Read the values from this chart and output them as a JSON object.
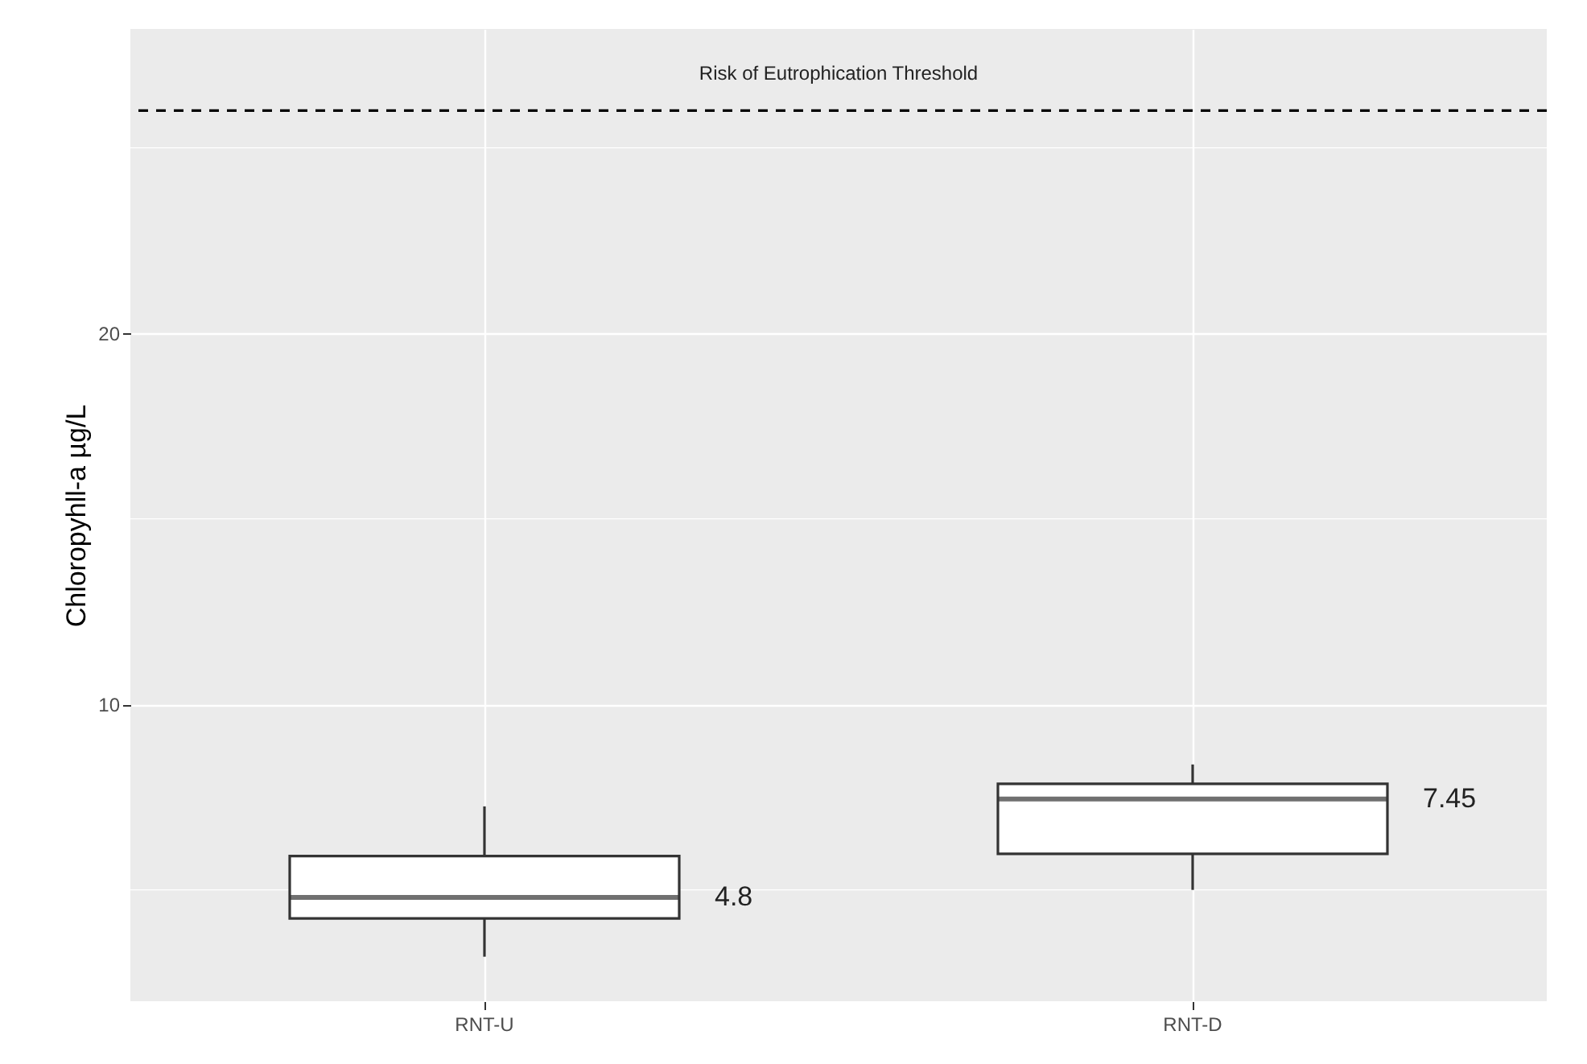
{
  "chart_data": {
    "type": "box",
    "ylabel": "Chloropyhll-a µg/L",
    "categories": [
      "RNT-U",
      "RNT-D"
    ],
    "boxes": [
      {
        "low": 3.2,
        "q1": 4.23,
        "median": 4.8,
        "q3": 5.91,
        "high": 7.25
      },
      {
        "low": 5.0,
        "q1": 5.97,
        "median": 7.45,
        "q3": 7.86,
        "high": 8.38
      }
    ],
    "annotations": [
      "4.8",
      "7.45"
    ],
    "ref_lines": [
      {
        "axis": "y",
        "value": 26,
        "label": "Risk of Eutrophication Threshold",
        "line_style": "dashed",
        "color": "#000000"
      }
    ],
    "ylim": [
      2,
      28.2
    ],
    "yticks": [
      {
        "value": 5,
        "label": null
      },
      10,
      {
        "value": 15,
        "label": null
      },
      20,
      {
        "value": 25,
        "label": null
      }
    ],
    "grid": true
  }
}
